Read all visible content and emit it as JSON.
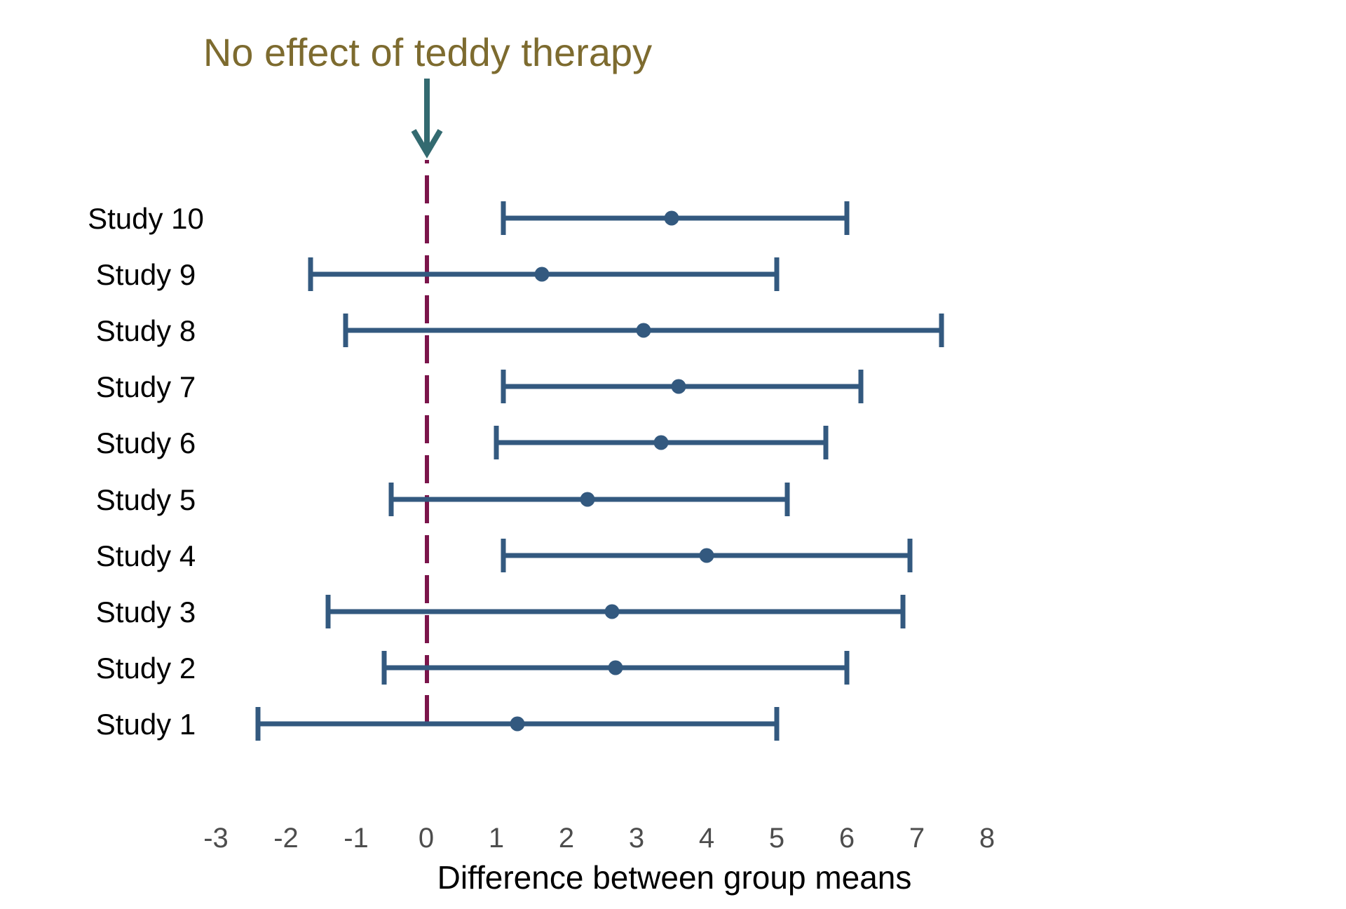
{
  "colors": {
    "background": "#FFFFFF",
    "errorbar_blue": "#33597F",
    "reference_line_maroon": "#7B154B",
    "arrow_teal": "#336A70",
    "annotation_olive": "#7D6B2F",
    "tick_label_gray": "#4D4D4D",
    "study_label_black": "#000000",
    "axis_title_black": "#000000"
  },
  "chart_data": {
    "type": "scatter",
    "subtype": "forest-plot-horizontal-errorbars",
    "title": "No effect of teddy therapy",
    "xlabel": "Difference between group means",
    "ylabel": "",
    "grid": false,
    "legend": null,
    "xlim": [
      -3.5,
      8.6
    ],
    "xticks": [
      -3,
      -2,
      -1,
      0,
      1,
      2,
      3,
      4,
      5,
      6,
      7,
      8
    ],
    "reference_line": {
      "x": 0,
      "style": "dashed",
      "annotation": "No effect of teddy therapy",
      "annotation_arrow": "down-arrow"
    },
    "categories": [
      "Study 10",
      "Study 9",
      "Study 8",
      "Study 7",
      "Study 6",
      "Study 5",
      "Study 4",
      "Study 3",
      "Study 2",
      "Study 1"
    ],
    "series": [
      {
        "name": "Difference between group means",
        "points": [
          {
            "label": "Study 10",
            "mean": 3.5,
            "ci_low": 1.1,
            "ci_high": 6.0
          },
          {
            "label": "Study 9",
            "mean": 1.65,
            "ci_low": -1.65,
            "ci_high": 5.0
          },
          {
            "label": "Study 8",
            "mean": 3.1,
            "ci_low": -1.15,
            "ci_high": 7.35
          },
          {
            "label": "Study 7",
            "mean": 3.6,
            "ci_low": 1.1,
            "ci_high": 6.2
          },
          {
            "label": "Study 6",
            "mean": 3.35,
            "ci_low": 1.0,
            "ci_high": 5.7
          },
          {
            "label": "Study 5",
            "mean": 2.3,
            "ci_low": -0.5,
            "ci_high": 5.15
          },
          {
            "label": "Study 4",
            "mean": 4.0,
            "ci_low": 1.1,
            "ci_high": 6.9
          },
          {
            "label": "Study 3",
            "mean": 2.65,
            "ci_low": -1.4,
            "ci_high": 6.8
          },
          {
            "label": "Study 2",
            "mean": 2.7,
            "ci_low": -0.6,
            "ci_high": 6.0
          },
          {
            "label": "Study 1",
            "mean": 1.3,
            "ci_low": -2.4,
            "ci_high": 5.0
          }
        ]
      }
    ]
  }
}
